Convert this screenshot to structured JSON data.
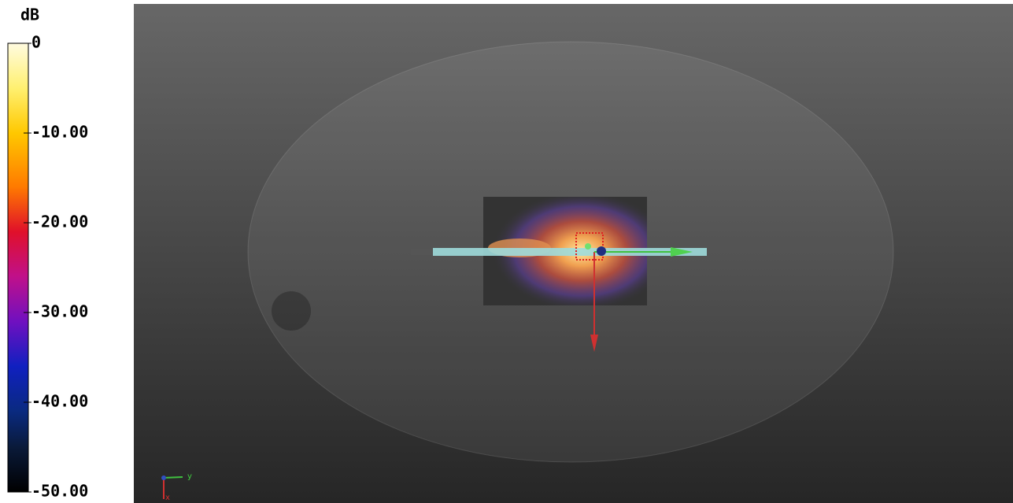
{
  "colorbar": {
    "unit": "dB",
    "ticks": [
      "0",
      "-10.00",
      "-20.00",
      "-30.00",
      "-40.00",
      "-50.00"
    ]
  },
  "axes": {
    "y": "y",
    "x": "x"
  }
}
